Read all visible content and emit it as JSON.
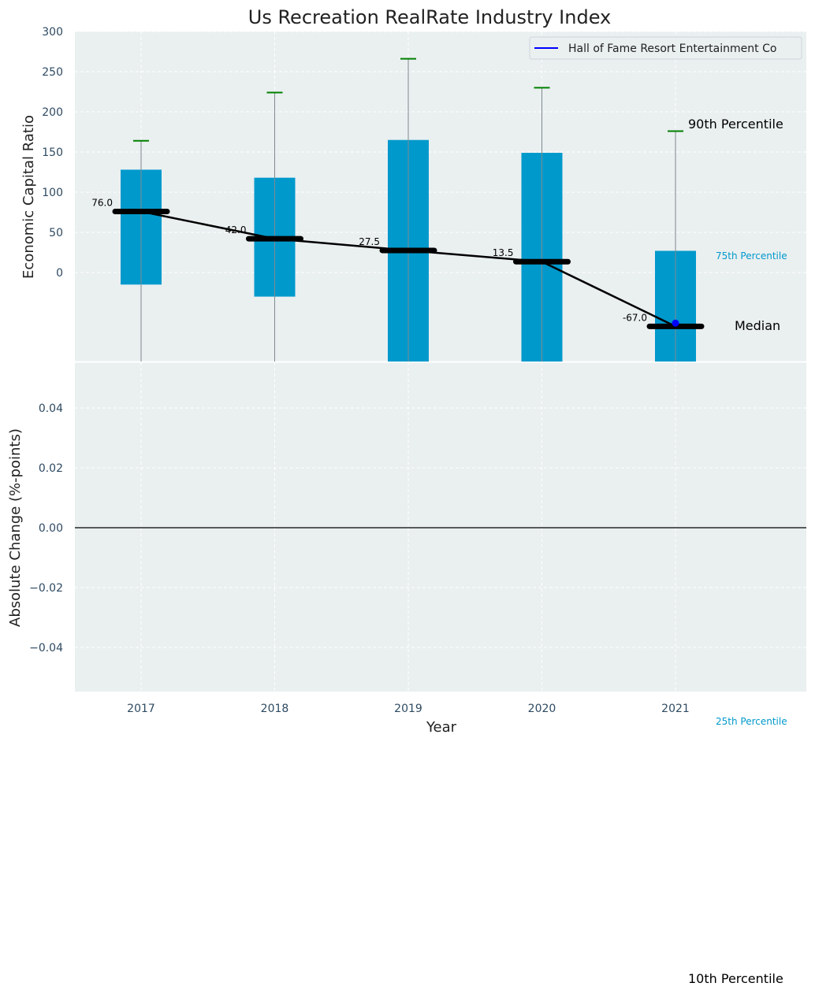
{
  "chart_data": [
    {
      "type": "bar",
      "title": "Us Recreation RealRate Industry Index",
      "ylabel": "Economic Capital Ratio",
      "xlabel": "",
      "ylim": [
        -112,
        300
      ],
      "yticks": [
        0,
        50,
        100,
        150,
        200,
        250,
        300
      ],
      "grid": true,
      "categories": [
        "2017",
        "2018",
        "2019",
        "2020",
        "2021"
      ],
      "percentile_75": [
        128,
        118,
        165,
        149,
        27
      ],
      "percentile_25": [
        -15,
        -30,
        -112,
        -112,
        -112
      ],
      "percentile_90": [
        164,
        224,
        266,
        230,
        176
      ],
      "median": [
        76.0,
        42.0,
        27.5,
        13.5,
        -67.0
      ],
      "median_labels": [
        "76.0",
        "42.0",
        "27.5",
        "13.5",
        "-67.0"
      ],
      "company_series": {
        "name": "Hall of Fame Resort Entertainment Co",
        "x": [
          "2021"
        ],
        "values": [
          -63
        ]
      },
      "legend_placement": "upper-right",
      "annotations": {
        "p90": "90th Percentile",
        "p75": "75th Percentile",
        "median": "Median",
        "p25": "25th Percentile",
        "p10": "10th Percentile"
      },
      "colors": {
        "bar": "#0099cc",
        "median": "#000000",
        "whisker_cap": "#008000",
        "company": "#0000ff",
        "background": "#eaeff0"
      }
    },
    {
      "type": "line",
      "ylabel": "Absolute Change (%-points)",
      "xlabel": "Year",
      "categories": [
        "2017",
        "2018",
        "2019",
        "2020",
        "2021"
      ],
      "ylim": [
        -0.055,
        0.055
      ],
      "yticks": [
        -0.04,
        -0.02,
        0.0,
        0.02,
        0.04
      ],
      "ytick_labels": [
        "−0.04",
        "−0.02",
        "0.00",
        "0.02",
        "0.04"
      ],
      "zero_line": true,
      "grid": true
    }
  ]
}
